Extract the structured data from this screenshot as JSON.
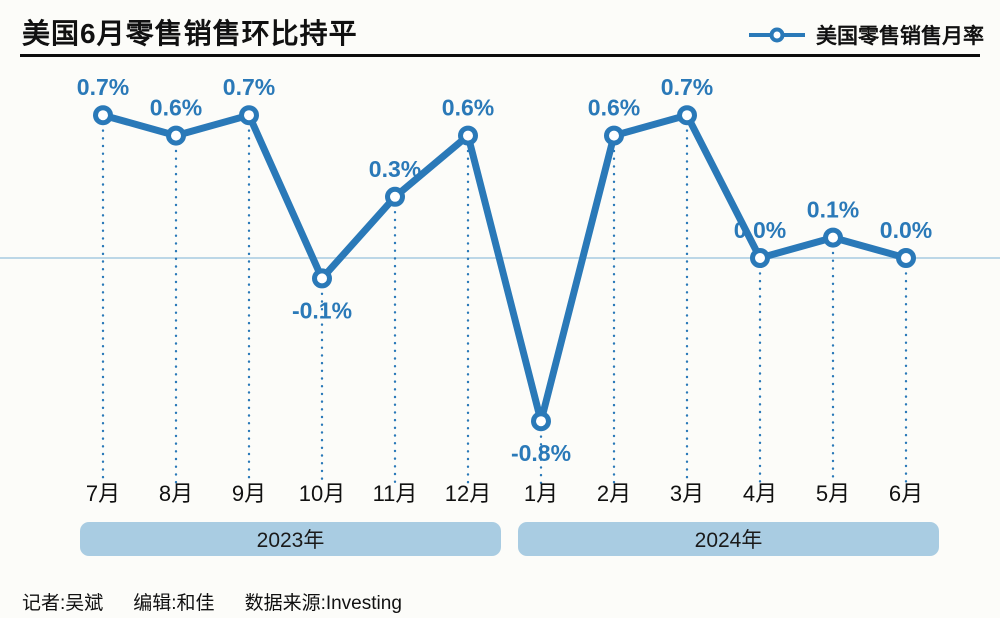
{
  "header": {
    "title": "美国6月零售销售环比持平",
    "legend_label": "美国零售销售月率"
  },
  "chart_data": {
    "type": "line",
    "title": "美国6月零售销售环比持平",
    "series_name": "美国零售销售月率",
    "legend_position": "top-right",
    "categories": [
      "7月",
      "8月",
      "9月",
      "10月",
      "11月",
      "12月",
      "1月",
      "2月",
      "3月",
      "4月",
      "5月",
      "6月"
    ],
    "values": [
      0.7,
      0.6,
      0.7,
      -0.1,
      0.3,
      0.6,
      -0.8,
      0.6,
      0.7,
      0.0,
      0.1,
      0.0
    ],
    "labels": [
      "0.7%",
      "0.6%",
      "0.7%",
      "-0.1%",
      "0.3%",
      "0.6%",
      "-0.8%",
      "0.6%",
      "0.7%",
      "0.0%",
      "0.1%",
      "0.0%"
    ],
    "ylim": [
      -1.0,
      0.9
    ],
    "grid": false,
    "zero_line": true,
    "year_groups": [
      {
        "label": "2023年",
        "start": 0,
        "end": 5
      },
      {
        "label": "2024年",
        "start": 6,
        "end": 11
      }
    ],
    "line_color": "#2a79b8",
    "marker_fill": "#ffffff",
    "zero_line_color": "#bcd7e7",
    "band_color": "#a9cce2"
  },
  "footer": {
    "items": [
      "记者:吴斌",
      "编辑:和佳",
      "数据来源:Investing"
    ]
  }
}
